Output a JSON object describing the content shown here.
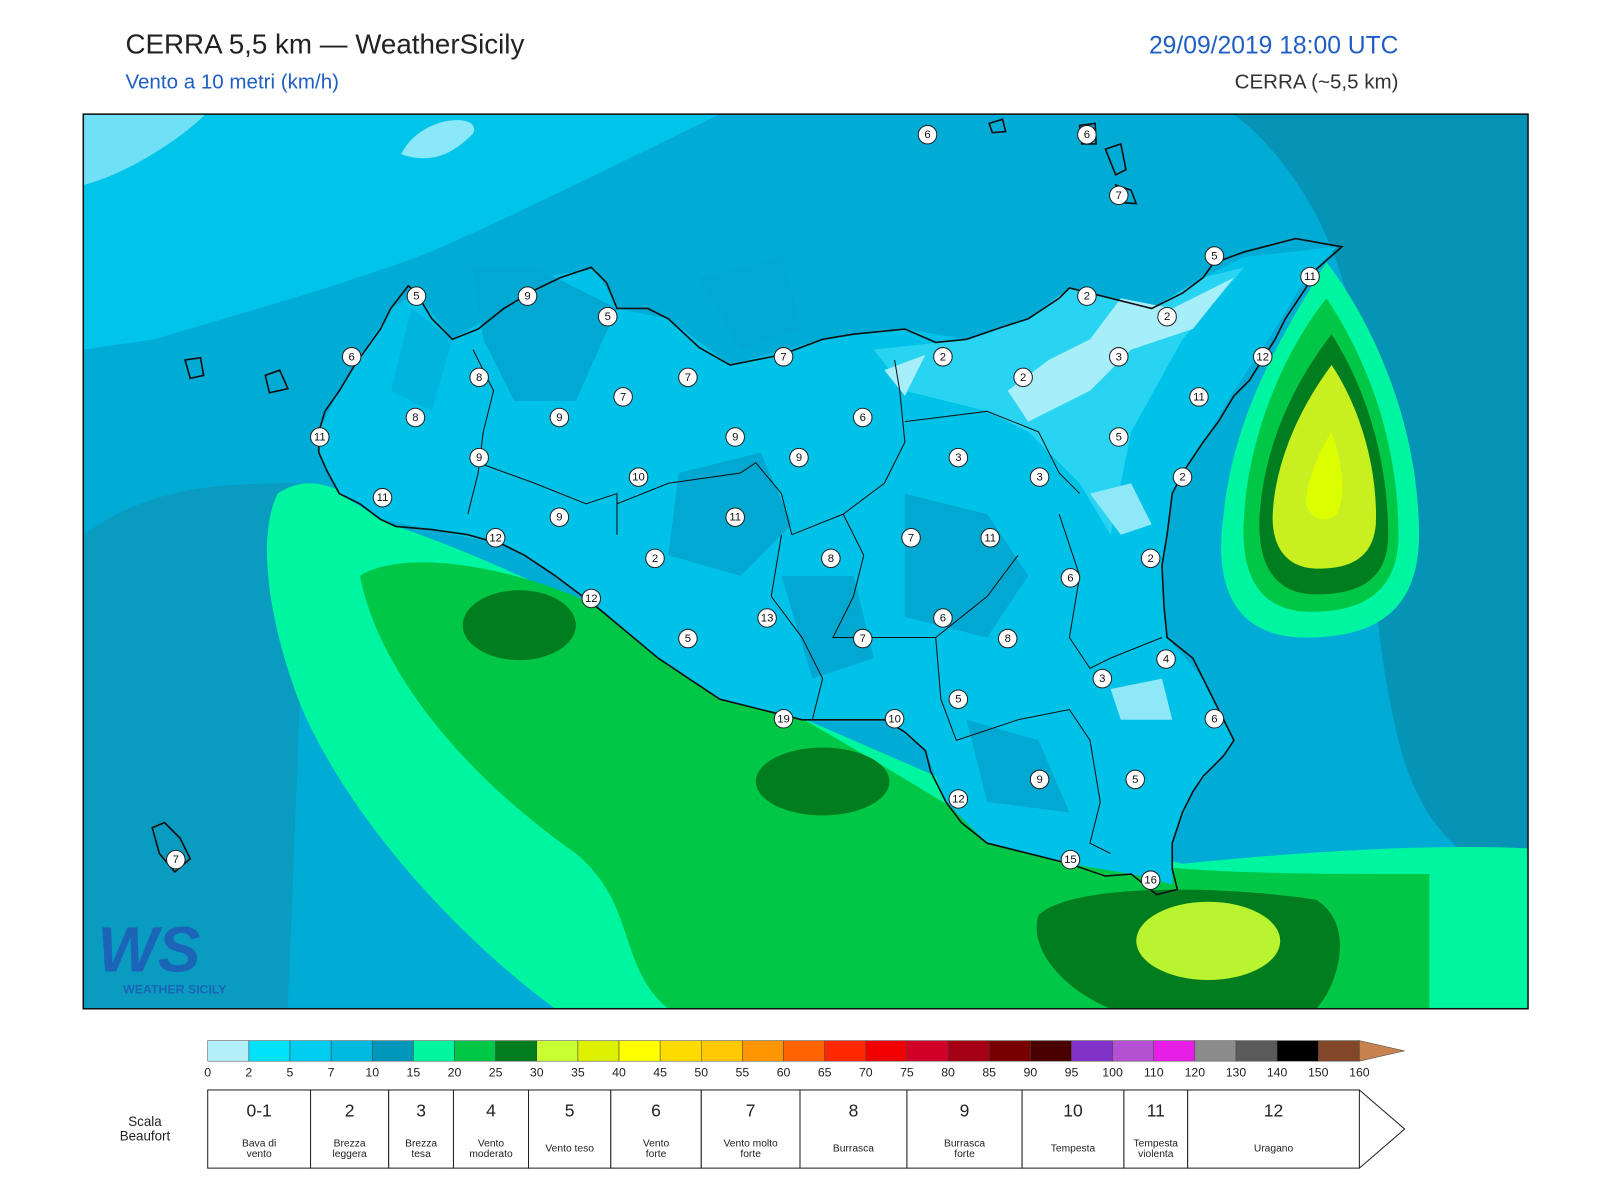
{
  "header": {
    "title": "CERRA 5,5 km — WeatherSicily",
    "subtitle": "Vento a 10 metri (km/h)",
    "datetime": "29/09/2019 18:00 UTC",
    "model": "CERRA (~5,5 km)"
  },
  "logo": {
    "mark": "WS",
    "text": "WEATHER SICILY"
  },
  "map": {
    "stations": [
      6,
      6,
      7,
      5,
      11,
      5,
      9,
      5,
      2,
      2,
      6,
      7,
      2,
      3,
      12,
      8,
      7,
      2,
      7,
      11,
      8,
      9,
      6,
      11,
      9,
      5,
      9,
      9,
      3,
      10,
      3,
      2,
      11,
      9,
      11,
      12,
      7,
      11,
      2,
      8,
      2,
      6,
      12,
      13,
      6,
      5,
      7,
      8,
      4,
      3,
      5,
      19,
      10,
      6,
      9,
      5,
      12,
      15,
      16,
      7
    ]
  },
  "legend": {
    "colors": [
      "#b4f0fa",
      "#00e1fa",
      "#00cdf0",
      "#00b9e1",
      "#0097ba",
      "#00f5a0",
      "#00c846",
      "#007d1e",
      "#c8ff32",
      "#dcf000",
      "#ffff00",
      "#ffdc00",
      "#ffc800",
      "#ff9600",
      "#ff6400",
      "#ff2800",
      "#f00000",
      "#d20028",
      "#a50014",
      "#780000",
      "#4b0000",
      "#8232c8",
      "#b450d2",
      "#e61ee6",
      "#8c8c8c",
      "#5a5a5a",
      "#000000",
      "#824628",
      "#c88250"
    ],
    "ticks": [
      0,
      2,
      5,
      7,
      10,
      15,
      20,
      25,
      30,
      35,
      40,
      45,
      50,
      55,
      60,
      65,
      70,
      75,
      80,
      85,
      90,
      95,
      100,
      110,
      120,
      130,
      140,
      150,
      160
    ]
  },
  "beaufort": {
    "title": [
      "Scala",
      "Beaufort"
    ],
    "levels": [
      {
        "force": "0-1",
        "label": [
          "Bava di",
          "vento"
        ]
      },
      {
        "force": 2,
        "label": [
          "Brezza",
          "leggera"
        ]
      },
      {
        "force": 3,
        "label": [
          "Brezza",
          "tesa"
        ]
      },
      {
        "force": 4,
        "label": [
          "Vento",
          "moderato"
        ]
      },
      {
        "force": 5,
        "label": [
          "Vento teso"
        ]
      },
      {
        "force": 6,
        "label": [
          "Vento",
          "forte"
        ]
      },
      {
        "force": 7,
        "label": [
          "Vento molto",
          "forte"
        ]
      },
      {
        "force": 8,
        "label": [
          "Burrasca"
        ]
      },
      {
        "force": 9,
        "label": [
          "Burrasca",
          "forte"
        ]
      },
      {
        "force": 10,
        "label": [
          "Tempesta"
        ]
      },
      {
        "force": 11,
        "label": [
          "Tempesta",
          "violenta"
        ]
      },
      {
        "force": 12,
        "label": [
          "Uragano"
        ]
      }
    ]
  }
}
